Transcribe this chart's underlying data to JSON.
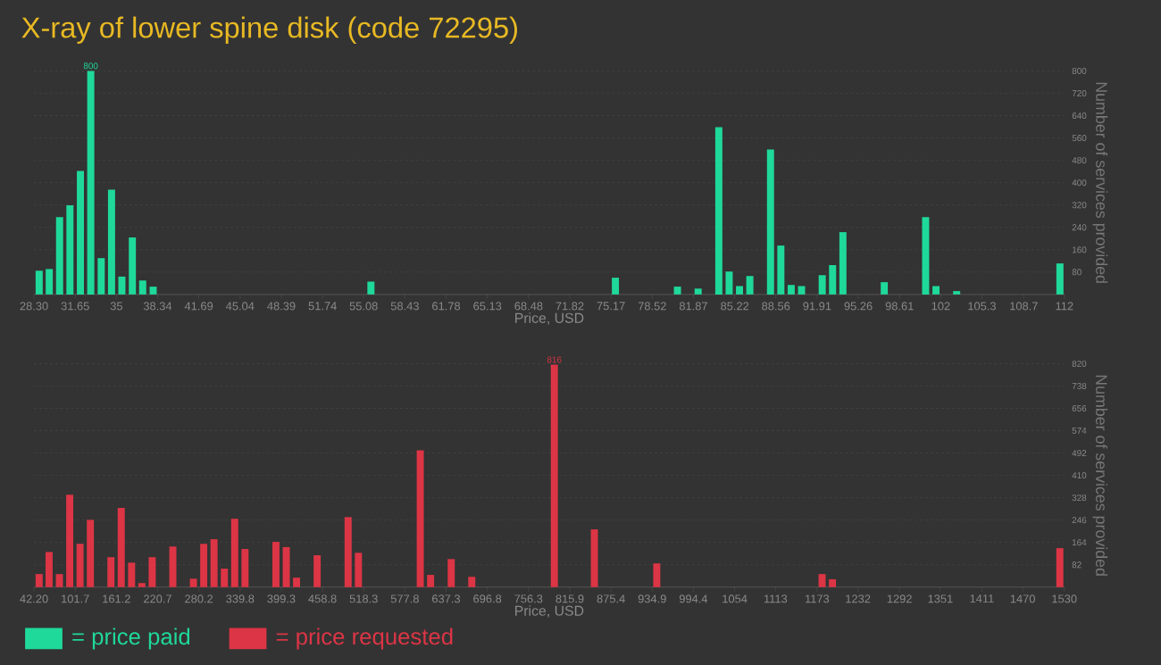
{
  "chart_data": [
    {
      "type": "bar",
      "title": "X-ray of lower spine disk (code 72295)",
      "xlabel": "Price, USD",
      "ylabel": "Number of services provided",
      "grid": "y",
      "legend": "bottom",
      "x": [
        28.72,
        29.54,
        30.38,
        31.22,
        32.07,
        32.91,
        33.76,
        34.6,
        35.44,
        36.29,
        37.13,
        37.98,
        55.67,
        75.53,
        80.57,
        82.25,
        83.93,
        84.77,
        85.61,
        86.45,
        88.13,
        88.97,
        89.81,
        90.65,
        92.33,
        93.17,
        94.01,
        97.37,
        100.73,
        101.57,
        103.25,
        111.64
      ],
      "series": [
        {
          "name": "= price paid",
          "color": "#1fd99a",
          "values": [
            85,
            91,
            277,
            319,
            442,
            800,
            130,
            375,
            64,
            204,
            50,
            28,
            46,
            60,
            28,
            21,
            599,
            82,
            30,
            66,
            519,
            175,
            34,
            30,
            69,
            105,
            223,
            44,
            277,
            30,
            12,
            111
          ],
          "value_labels": [
            null,
            null,
            null,
            null,
            null,
            "800",
            null,
            null,
            null,
            null,
            null,
            null,
            null,
            null,
            null,
            null,
            null,
            null,
            null,
            null,
            null,
            null,
            null,
            null,
            null,
            null,
            null,
            null,
            null,
            null,
            null,
            null
          ]
        }
      ],
      "xlim": [
        28.3,
        112
      ],
      "xticks": [
        {
          "value": 28.3,
          "label": "28.30"
        },
        31.65,
        35,
        38.34,
        41.69,
        45.04,
        48.39,
        51.74,
        55.08,
        58.43,
        61.78,
        65.13,
        68.48,
        71.82,
        75.17,
        78.52,
        81.87,
        85.22,
        88.56,
        91.91,
        95.26,
        98.61,
        {
          "value": 101.96,
          "label": "102"
        },
        105.3,
        108.7,
        112
      ],
      "ylim": [
        0,
        800
      ],
      "yticks": [
        80,
        160,
        240,
        320,
        400,
        480,
        560,
        640,
        720,
        800
      ]
    },
    {
      "type": "bar",
      "xlabel": "Price, USD",
      "ylabel": "Number of services provided",
      "grid": "y",
      "legend": "bottom",
      "x": [
        49.6,
        64.0,
        78.9,
        93.8,
        108.7,
        123.6,
        153.3,
        168.2,
        183.1,
        198.0,
        212.9,
        242.7,
        272.4,
        287.3,
        302.2,
        317.1,
        332.0,
        346.9,
        391.6,
        406.5,
        421.3,
        451.1,
        495.8,
        510.7,
        600.0,
        614.9,
        644.7,
        674.4,
        793.6,
        851.4,
        941.5,
        1180.3,
        1195.2,
        1523.6
      ],
      "series": [
        {
          "name": "= price requested",
          "color": "#dc3545",
          "values": [
            48,
            129,
            48,
            339,
            159,
            247,
            110,
            291,
            90,
            15,
            110,
            149,
            31,
            159,
            176,
            68,
            251,
            140,
            166,
            147,
            35,
            117,
            257,
            126,
            502,
            45,
            103,
            38,
            816,
            212,
            87,
            48,
            29,
            143
          ],
          "value_labels": [
            null,
            null,
            null,
            null,
            null,
            null,
            null,
            null,
            null,
            null,
            null,
            null,
            null,
            null,
            null,
            null,
            null,
            null,
            null,
            null,
            null,
            null,
            null,
            null,
            null,
            null,
            null,
            null,
            "816",
            null,
            null,
            null,
            null,
            null
          ]
        }
      ],
      "xlim": [
        42.2,
        1530
      ],
      "xticks": [
        {
          "value": 42.2,
          "label": "42.20"
        },
        101.7,
        161.2,
        220.7,
        280.2,
        339.8,
        399.3,
        458.8,
        518.3,
        577.8,
        637.3,
        696.8,
        756.3,
        815.9,
        875.4,
        934.9,
        994.4,
        1054,
        1113,
        1173,
        1232,
        1292,
        1351,
        1411,
        1470,
        1530
      ],
      "ylim": [
        0,
        820
      ],
      "yticks": [
        82,
        164,
        246,
        328,
        410,
        492,
        574,
        656,
        738,
        820
      ]
    }
  ]
}
